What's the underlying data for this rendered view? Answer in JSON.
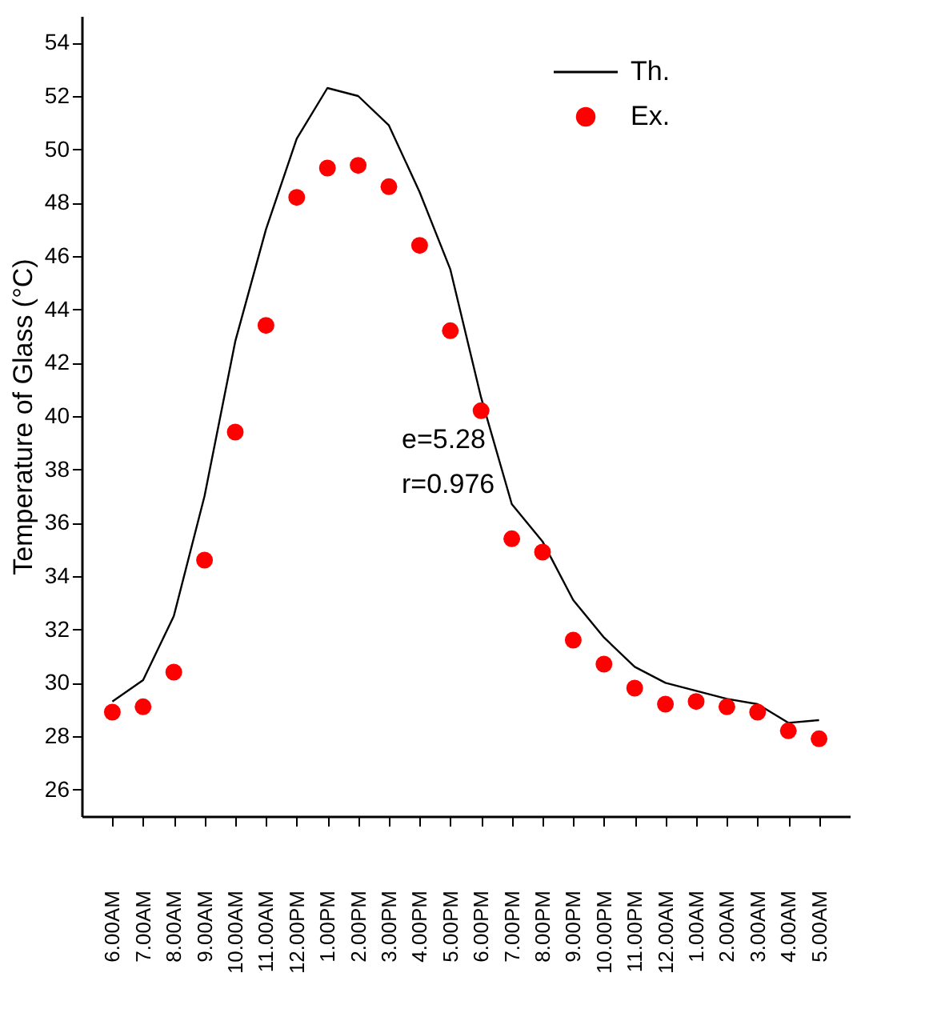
{
  "chart_data": {
    "type": "line",
    "ylabel": "Temperature of Glass (°C)",
    "categories": [
      "6.00AM",
      "7.00AM",
      "8.00AM",
      "9.00AM",
      "10.00AM",
      "11.00AM",
      "12.00PM",
      "1.00PM",
      "2.00PM",
      "3.00PM",
      "4.00PM",
      "5.00PM",
      "6.00PM",
      "7.00PM",
      "8.00PM",
      "9.00PM",
      "10.00PM",
      "11.00PM",
      "12.00AM",
      "1.00AM",
      "2.00AM",
      "3.00AM",
      "4.00AM",
      "5.00AM"
    ],
    "series": [
      {
        "name": "Th.",
        "type": "line",
        "color": "#000000",
        "marker": "none",
        "line_style": "solid",
        "values": [
          29.3,
          30.1,
          32.5,
          37.0,
          42.8,
          47.0,
          50.4,
          52.3,
          52.0,
          50.9,
          48.4,
          45.5,
          40.7,
          36.7,
          35.3,
          33.1,
          31.7,
          30.6,
          30.0,
          29.7,
          29.4,
          29.2,
          28.5,
          28.6
        ]
      },
      {
        "name": "Ex.",
        "type": "scatter",
        "color": "#ff0000",
        "marker": "circle",
        "values": [
          28.9,
          29.1,
          30.4,
          34.6,
          39.4,
          43.4,
          48.2,
          49.3,
          49.4,
          48.6,
          46.4,
          43.2,
          40.2,
          35.4,
          34.9,
          31.6,
          30.7,
          29.8,
          29.2,
          29.3,
          29.1,
          28.9,
          28.2,
          27.9
        ]
      }
    ],
    "ylim": [
      25,
      55
    ],
    "yticks": [
      26,
      28,
      30,
      32,
      34,
      36,
      38,
      40,
      42,
      44,
      46,
      48,
      50,
      52,
      54
    ],
    "annotations": [
      "e=5.28",
      "r=0.976"
    ],
    "grid": false,
    "legend": "top right"
  }
}
